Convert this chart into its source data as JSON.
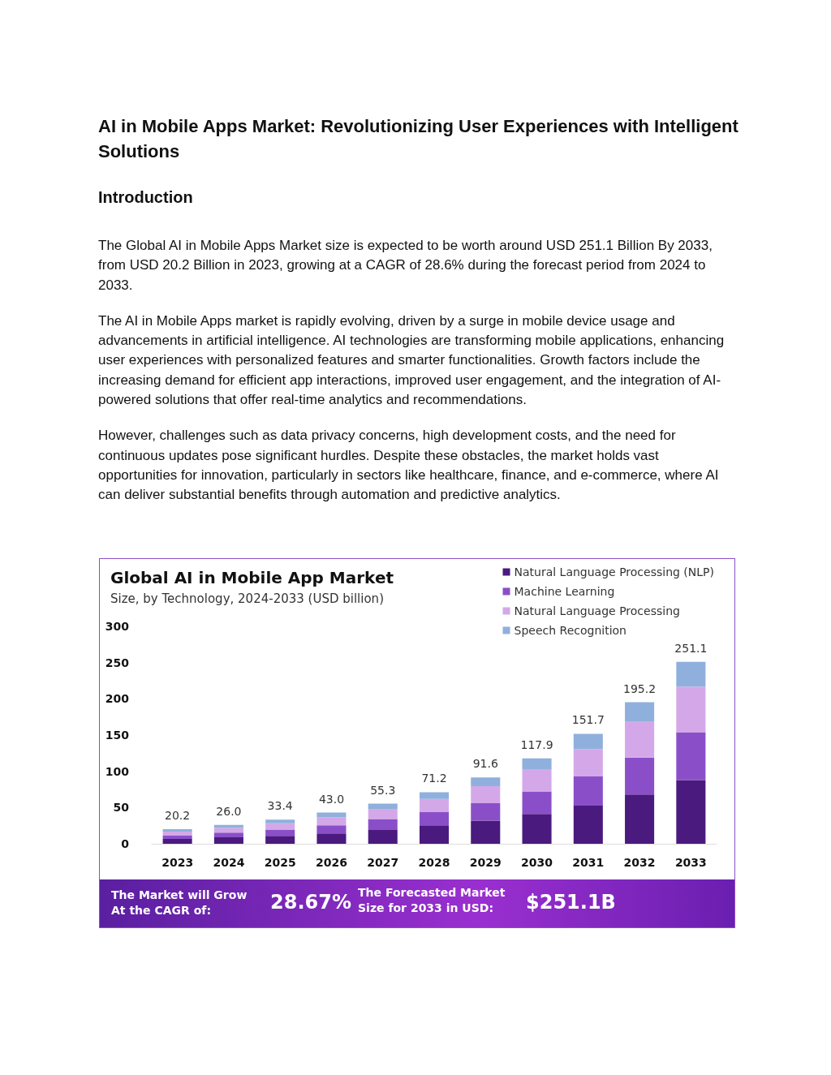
{
  "chart_data": {
    "type": "bar",
    "stacked": true,
    "title": "Global AI in Mobile App Market",
    "subtitle": "Size, by Technology, 2024-2033 (USD billion)",
    "annotations": [
      "AI in Mobile Apps Market: Revolutionizing User Experiences with Intelligent Solutions",
      "Introduction",
      "The Global AI in Mobile Apps Market size is expected to be worth around USD 251.1 Billion By 2033, from USD 20.2 Billion in 2023, growing at a CAGR of 28.6% during the forecast period from 2024 to 2033.",
      "The AI in Mobile Apps market is rapidly evolving, driven by a surge in mobile device usage and advancements in artificial intelligence. AI technologies are transforming mobile applications, enhancing user experiences with personalized features and smarter functionalities. Growth factors include the increasing demand for efficient app interactions, improved user engagement, and the integration of AI-powered solutions that offer real-time analytics and recommendations.",
      "However, challenges such as data privacy concerns, high development costs, and the need for continuous updates pose significant hurdles. Despite these obstacles, the market holds vast opportunities for innovation, particularly in sectors like healthcare, finance, and e-commerce, where AI can deliver substantial benefits through automation and predictive analytics.",
      "The Market will Grow At the CAGR of:",
      "28.67%",
      "The Forecasted Market Size for 2033 in USD:",
      "$251.1B"
    ],
    "categories": [
      "2023",
      "2024",
      "2025",
      "2026",
      "2027",
      "2028",
      "2029",
      "2030",
      "2031",
      "2032",
      "2033"
    ],
    "series": [
      {
        "name": "Natural Language Processing (NLP)",
        "color": "#4a1a7e",
        "values": [
          6.8,
          9.0,
          11.0,
          14.3,
          19.0,
          25.4,
          31.8,
          41.2,
          52.7,
          68,
          88
        ]
      },
      {
        "name": "Machine Learning",
        "color": "#8a4fc8",
        "values": [
          5.0,
          6.4,
          8.7,
          11.3,
          15.1,
          18.2,
          24.2,
          31.0,
          40.3,
          51,
          66
        ]
      },
      {
        "name": "Natural Language Processing",
        "color": "#d4a8e8",
        "values": [
          5.0,
          6.5,
          8.7,
          10.9,
          14.0,
          18.2,
          23.5,
          29.9,
          37.7,
          49.2,
          63
        ]
      },
      {
        "name": "Speech Recognition",
        "color": "#8fb0dc",
        "values": [
          3.4,
          4.1,
          5.0,
          6.5,
          7.2,
          9.4,
          12.1,
          15.8,
          21.0,
          27,
          34.1
        ]
      }
    ],
    "totals": [
      "20.2",
      "26.0",
      "33.4",
      "43.0",
      "55.3",
      "71.2",
      "91.6",
      "117.9",
      "151.7",
      "195.2",
      "251.1"
    ],
    "ylim": [
      0,
      300
    ],
    "yticks": [
      0,
      50,
      100,
      150,
      200,
      250,
      300
    ],
    "grid": false,
    "legend": "top right"
  }
}
